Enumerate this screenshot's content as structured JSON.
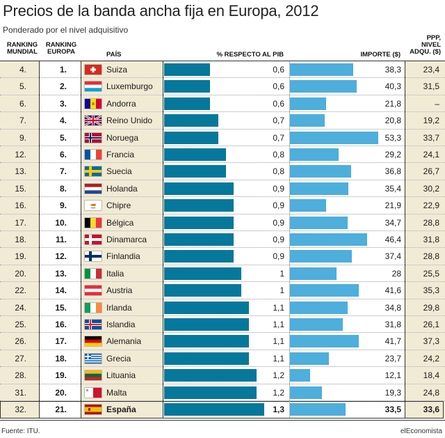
{
  "title": "Precios de la banda ancha fija en Europa, 2012",
  "subtitle": "Ponderado por el nivel adquisitivo",
  "headers": {
    "world_rank": "RANKING MUNDIAL",
    "europe_rank": "RANKING EUROPA",
    "country": "PAÍS",
    "gdp": "% RESPECTO AL PIB",
    "price": "IMPORTE ($)",
    "ppp": "PPP, NIVEL ADQU. ($)"
  },
  "source": "Fuente: ITU.",
  "brand": "elEconomista",
  "colors": {
    "gdp_bar": "#06789b",
    "price_bar": "#4eaedc",
    "row_bg": "#f1ead4"
  },
  "chart_data": {
    "type": "table",
    "title": "Precios de la banda ancha fija en Europa, 2012",
    "subtitle": "Ponderado por el nivel adquisitivo",
    "gdp_range": [
      0,
      1.3
    ],
    "price_range": [
      0,
      53.3
    ],
    "rows": [
      {
        "world_rank": "4.",
        "europe_rank": "1.",
        "country": "Suiza",
        "flag": "ch",
        "gdp": 0.6,
        "gdp_label": "0,6",
        "price": 38.3,
        "price_label": "38,3",
        "ppp": "23,4"
      },
      {
        "world_rank": "5.",
        "europe_rank": "2.",
        "country": "Luxemburgo",
        "flag": "lu",
        "gdp": 0.6,
        "gdp_label": "0,6",
        "price": 40.3,
        "price_label": "40,3",
        "ppp": "31,5"
      },
      {
        "world_rank": "6.",
        "europe_rank": "3.",
        "country": "Andorra",
        "flag": "ad",
        "gdp": 0.6,
        "gdp_label": "0,6",
        "price": 21.8,
        "price_label": "21,8",
        "ppp": "–"
      },
      {
        "world_rank": "7.",
        "europe_rank": "4.",
        "country": "Reino Unido",
        "flag": "gb",
        "gdp": 0.7,
        "gdp_label": "0,7",
        "price": 20.8,
        "price_label": "20,8",
        "ppp": "19,2"
      },
      {
        "world_rank": "9.",
        "europe_rank": "5.",
        "country": "Noruega",
        "flag": "no",
        "gdp": 0.7,
        "gdp_label": "0,7",
        "price": 53.3,
        "price_label": "53,3",
        "ppp": "33,7"
      },
      {
        "world_rank": "12.",
        "europe_rank": "6.",
        "country": "Francia",
        "flag": "fr",
        "gdp": 0.8,
        "gdp_label": "0,8",
        "price": 29.2,
        "price_label": "29,2",
        "ppp": "24,1"
      },
      {
        "world_rank": "13.",
        "europe_rank": "7.",
        "country": "Suecia",
        "flag": "se",
        "gdp": 0.8,
        "gdp_label": "0,8",
        "price": 36.8,
        "price_label": "36,8",
        "ppp": "26,7"
      },
      {
        "world_rank": "15.",
        "europe_rank": "8.",
        "country": "Holanda",
        "flag": "nl",
        "gdp": 0.9,
        "gdp_label": "0,9",
        "price": 35.4,
        "price_label": "35,4",
        "ppp": "30,2"
      },
      {
        "world_rank": "16.",
        "europe_rank": "9.",
        "country": "Chipre",
        "flag": "cy",
        "gdp": 0.9,
        "gdp_label": "0,9",
        "price": 21.9,
        "price_label": "21,9",
        "ppp": "22,9"
      },
      {
        "world_rank": "17.",
        "europe_rank": "10.",
        "country": "Bélgica",
        "flag": "be",
        "gdp": 0.9,
        "gdp_label": "0,9",
        "price": 34.7,
        "price_label": "34,7",
        "ppp": "28,8"
      },
      {
        "world_rank": "18.",
        "europe_rank": "11.",
        "country": "Dinamarca",
        "flag": "dk",
        "gdp": 0.9,
        "gdp_label": "0,9",
        "price": 46.4,
        "price_label": "46,4",
        "ppp": "31,8"
      },
      {
        "world_rank": "19.",
        "europe_rank": "12.",
        "country": "Finlandia",
        "flag": "fi",
        "gdp": 0.9,
        "gdp_label": "0,9",
        "price": 37.4,
        "price_label": "37,4",
        "ppp": "28,8"
      },
      {
        "world_rank": "20.",
        "europe_rank": "13.",
        "country": "Italia",
        "flag": "it",
        "gdp": 1.0,
        "gdp_label": "1",
        "price": 28.0,
        "price_label": "28",
        "ppp": "25,5"
      },
      {
        "world_rank": "22.",
        "europe_rank": "14.",
        "country": "Austria",
        "flag": "at",
        "gdp": 1.0,
        "gdp_label": "1",
        "price": 41.6,
        "price_label": "41,6",
        "ppp": "35,3"
      },
      {
        "world_rank": "24.",
        "europe_rank": "15.",
        "country": "Irlanda",
        "flag": "ie",
        "gdp": 1.1,
        "gdp_label": "1,1",
        "price": 34.8,
        "price_label": "34,8",
        "ppp": "29,8"
      },
      {
        "world_rank": "25.",
        "europe_rank": "16.",
        "country": "Islandia",
        "flag": "is",
        "gdp": 1.1,
        "gdp_label": "1,1",
        "price": 31.8,
        "price_label": "31,8",
        "ppp": "26,1"
      },
      {
        "world_rank": "26.",
        "europe_rank": "17.",
        "country": "Alemania",
        "flag": "de",
        "gdp": 1.1,
        "gdp_label": "1,1",
        "price": 41.7,
        "price_label": "41,7",
        "ppp": "37,3"
      },
      {
        "world_rank": "27.",
        "europe_rank": "18.",
        "country": "Grecia",
        "flag": "gr",
        "gdp": 1.1,
        "gdp_label": "1,1",
        "price": 23.7,
        "price_label": "23,7",
        "ppp": "24,2"
      },
      {
        "world_rank": "28.",
        "europe_rank": "19.",
        "country": "Lituania",
        "flag": "lt",
        "gdp": 1.2,
        "gdp_label": "1,2",
        "price": 12.1,
        "price_label": "12,1",
        "ppp": "18,4"
      },
      {
        "world_rank": "31.",
        "europe_rank": "20.",
        "country": "Malta",
        "flag": "mt",
        "gdp": 1.2,
        "gdp_label": "1,2",
        "price": 19.3,
        "price_label": "19,3",
        "ppp": "24,8"
      },
      {
        "world_rank": "32.",
        "europe_rank": "21.",
        "country": "España",
        "flag": "es",
        "gdp": 1.3,
        "gdp_label": "1,3",
        "price": 33.5,
        "price_label": "33,5",
        "ppp": "33,6",
        "highlight": true
      }
    ]
  }
}
